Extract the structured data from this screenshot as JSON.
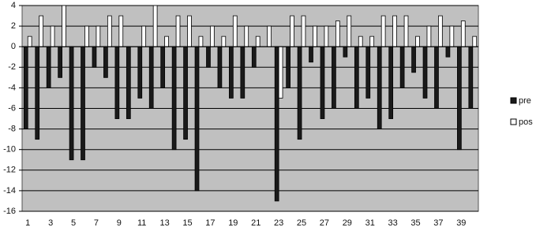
{
  "chart_data": {
    "type": "bar",
    "categories": [
      "1",
      null,
      "3",
      null,
      "5",
      null,
      "7",
      null,
      "9",
      null,
      "11",
      null,
      "13",
      null,
      "15",
      null,
      "17",
      null,
      "19",
      null,
      "21",
      null,
      "23",
      null,
      "25",
      null,
      "27",
      null,
      "29",
      null,
      "31",
      null,
      "33",
      null,
      "35",
      null,
      "37",
      null,
      "39",
      null
    ],
    "series": [
      {
        "name": "pre",
        "color": "#1a1a1a",
        "values": [
          -8,
          -9,
          -4,
          -3,
          -11,
          -11,
          -2,
          -3,
          -7,
          -7,
          -5,
          -6,
          -4,
          -10,
          -9,
          -14,
          -2,
          -4,
          -5,
          -5,
          -2,
          0,
          -15,
          -4,
          -9,
          -1.5,
          -7,
          -6,
          -1,
          -6,
          -5,
          -8,
          -7,
          -4,
          -2.5,
          -5,
          -6,
          -1,
          -10,
          -6
        ]
      },
      {
        "name": "pos",
        "color": "#ffffff",
        "values": [
          1,
          3,
          2,
          4,
          0,
          2,
          2,
          3,
          3,
          0,
          2,
          4,
          1,
          3,
          3,
          1,
          2,
          1,
          3,
          2,
          1,
          2,
          -5,
          3,
          3,
          2,
          2,
          2.5,
          3,
          1,
          1,
          3,
          3,
          3,
          1,
          2,
          3,
          2,
          2.5,
          1
        ]
      }
    ],
    "ylim": [
      -16,
      4
    ],
    "yticks": [
      -16,
      -14,
      -12,
      -10,
      -8,
      -6,
      -4,
      -2,
      0,
      2,
      4
    ],
    "grid": true,
    "legend": "right",
    "background": "#c0c0c0"
  }
}
